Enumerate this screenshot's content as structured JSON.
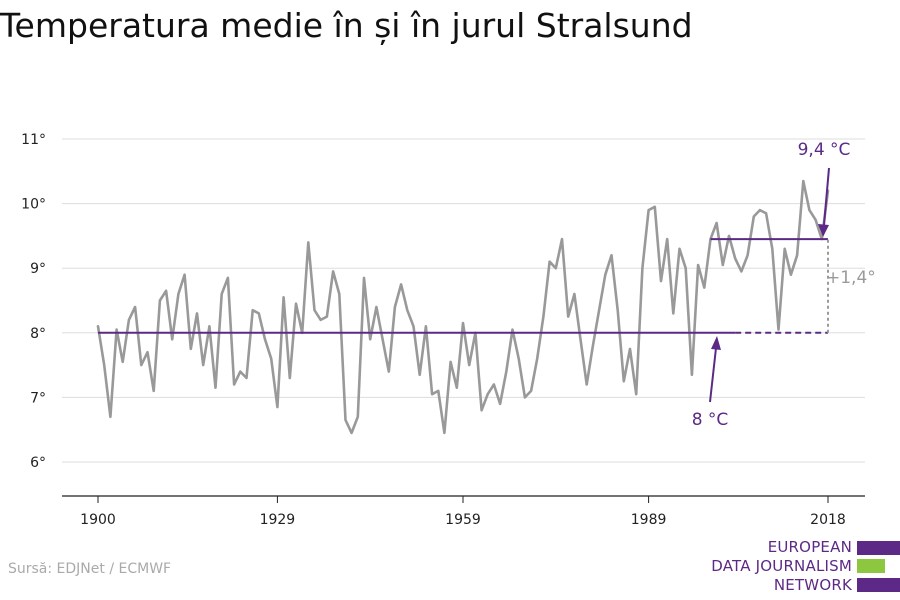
{
  "title": "Temperatura medie în și în jurul Stralsund",
  "source": "Sursă: EDJNet / ECMWF",
  "logo": {
    "lines": [
      "EUROPEAN",
      "DATA JOURNALISM",
      "NETWORK"
    ]
  },
  "colors": {
    "series": "#999999",
    "accent": "#5c2a86",
    "logo_green": "#8dc63f",
    "grid": "#dddddd"
  },
  "chart_data": {
    "type": "line",
    "title": "Temperatura medie în și în jurul Stralsund",
    "xlabel": "",
    "ylabel": "",
    "xlim": [
      1900,
      2018
    ],
    "ylim": [
      5.5,
      11.5
    ],
    "x_ticks": [
      1900,
      1929,
      1959,
      1989,
      2018
    ],
    "y_ticks": [
      {
        "value": 6,
        "label": "6°"
      },
      {
        "value": 7,
        "label": "7°"
      },
      {
        "value": 8,
        "label": "8°"
      },
      {
        "value": 9,
        "label": "9°"
      },
      {
        "value": 10,
        "label": "10°"
      },
      {
        "value": 11,
        "label": "11°"
      }
    ],
    "grid": true,
    "series": [
      {
        "x": [
          1900,
          1901,
          1902,
          1903,
          1904,
          1905,
          1906,
          1907,
          1908,
          1909,
          1910,
          1911,
          1912,
          1913,
          1914,
          1915,
          1916,
          1917,
          1918,
          1919,
          1920,
          1921,
          1922,
          1923,
          1924,
          1925,
          1926,
          1927,
          1928,
          1929,
          1930,
          1931,
          1932,
          1933,
          1934,
          1935,
          1936,
          1937,
          1938,
          1939,
          1940,
          1941,
          1942,
          1943,
          1944,
          1945,
          1946,
          1947,
          1948,
          1949,
          1950,
          1951,
          1952,
          1953,
          1954,
          1955,
          1956,
          1957,
          1958,
          1959,
          1960,
          1961,
          1962,
          1963,
          1964,
          1965,
          1966,
          1967,
          1968,
          1969,
          1970,
          1971,
          1972,
          1973,
          1974,
          1975,
          1976,
          1977,
          1978,
          1979,
          1980,
          1981,
          1982,
          1983,
          1984,
          1985,
          1986,
          1987,
          1988,
          1989,
          1990,
          1991,
          1992,
          1993,
          1994,
          1995,
          1996,
          1997,
          1998,
          1999,
          2000,
          2001,
          2002,
          2003,
          2004,
          2005,
          2006,
          2007,
          2008,
          2009,
          2010,
          2011,
          2012,
          2013,
          2014,
          2015,
          2016,
          2017,
          2018
        ],
        "values": [
          8.1,
          7.5,
          6.7,
          8.05,
          7.55,
          8.2,
          8.4,
          7.5,
          7.7,
          7.1,
          8.5,
          8.65,
          7.9,
          8.6,
          8.9,
          7.75,
          8.3,
          7.5,
          8.1,
          7.15,
          8.6,
          8.85,
          7.2,
          7.4,
          7.3,
          8.35,
          8.3,
          7.9,
          7.6,
          6.85,
          8.55,
          7.3,
          8.45,
          8.0,
          9.4,
          8.35,
          8.2,
          8.25,
          8.95,
          8.6,
          6.65,
          6.45,
          6.7,
          8.85,
          7.9,
          8.4,
          7.9,
          7.4,
          8.4,
          8.75,
          8.35,
          8.1,
          7.35,
          8.1,
          7.05,
          7.1,
          6.45,
          7.55,
          7.15,
          8.15,
          7.5,
          8.0,
          6.8,
          7.05,
          7.2,
          6.9,
          7.4,
          8.05,
          7.6,
          7.0,
          7.1,
          7.6,
          8.25,
          9.1,
          9.0,
          9.45,
          8.25,
          8.6,
          7.9,
          7.2,
          7.8,
          8.35,
          8.9,
          9.2,
          8.35,
          7.25,
          7.75,
          7.05,
          9.0,
          9.9,
          9.95,
          8.8,
          9.45,
          8.3,
          9.3,
          9.0,
          7.35,
          9.05,
          8.7,
          9.45,
          9.7,
          9.05,
          9.5,
          9.15,
          8.95,
          9.2,
          9.8,
          9.9,
          9.85,
          9.3,
          8.05,
          9.3,
          8.9,
          9.2,
          10.35,
          9.9,
          9.75,
          9.45,
          10.2
        ]
      }
    ],
    "annotations": [
      {
        "label": "8 °C",
        "from": 1900,
        "to": 2018,
        "value": 8.0
      },
      {
        "label": "9,4 °C",
        "from": 1999,
        "to": 2018,
        "value": 9.45
      },
      {
        "label": "+1,4°"
      }
    ]
  }
}
